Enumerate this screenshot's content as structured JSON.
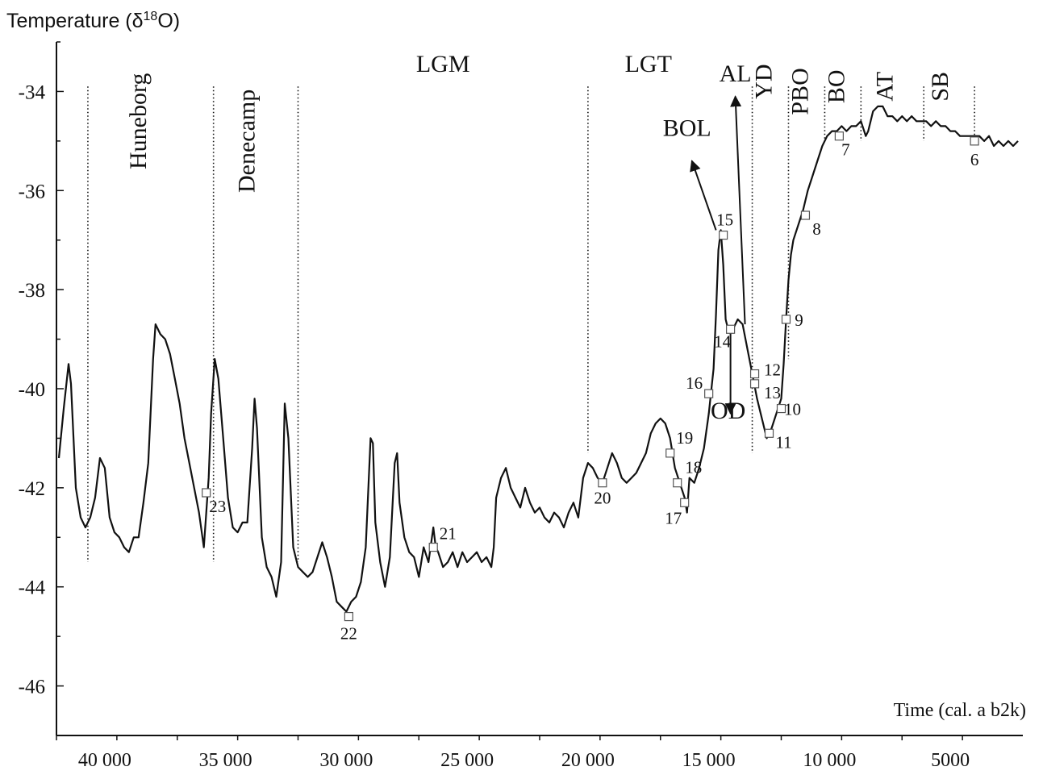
{
  "chart_data": {
    "type": "line",
    "y_title": "Temperature (δ",
    "y_title_sup": "18",
    "y_title_end": "O)",
    "x_title": "Time (cal. a b2k)",
    "xlim": [
      42000,
      2000
    ],
    "ylim": [
      -47,
      -33
    ],
    "x_ticks": [
      40000,
      35000,
      30000,
      25000,
      20000,
      15000,
      10000,
      5000
    ],
    "x_tick_labels": [
      "40 000",
      "35 000",
      "30 000",
      "25 000",
      "20 000",
      "15 000",
      "10 000",
      "5000"
    ],
    "y_ticks": [
      -34,
      -36,
      -38,
      -40,
      -42,
      -44,
      -46
    ],
    "y_tick_labels": [
      "-34",
      "-36",
      "-38",
      "-40",
      "-42",
      "-44",
      "-46"
    ],
    "grid": false,
    "series": [
      {
        "points": [
          [
            41900,
            -41.4
          ],
          [
            41700,
            -40.4
          ],
          [
            41500,
            -39.5
          ],
          [
            41400,
            -39.9
          ],
          [
            41200,
            -42.0
          ],
          [
            41000,
            -42.6
          ],
          [
            40800,
            -42.8
          ],
          [
            40600,
            -42.6
          ],
          [
            40400,
            -42.2
          ],
          [
            40200,
            -41.4
          ],
          [
            40000,
            -41.6
          ],
          [
            39800,
            -42.6
          ],
          [
            39600,
            -42.9
          ],
          [
            39400,
            -43.0
          ],
          [
            39200,
            -43.2
          ],
          [
            39000,
            -43.3
          ],
          [
            38800,
            -43.0
          ],
          [
            38600,
            -43.0
          ],
          [
            38400,
            -42.3
          ],
          [
            38200,
            -41.5
          ],
          [
            38000,
            -39.4
          ],
          [
            37900,
            -38.7
          ],
          [
            37700,
            -38.9
          ],
          [
            37500,
            -39.0
          ],
          [
            37300,
            -39.3
          ],
          [
            37100,
            -39.8
          ],
          [
            36900,
            -40.3
          ],
          [
            36700,
            -41.0
          ],
          [
            36500,
            -41.5
          ],
          [
            36300,
            -42.0
          ],
          [
            36100,
            -42.5
          ],
          [
            35900,
            -43.2
          ],
          [
            35800,
            -42.5
          ],
          [
            35700,
            -41.8
          ],
          [
            35600,
            -40.5
          ],
          [
            35450,
            -39.4
          ],
          [
            35300,
            -39.8
          ],
          [
            35100,
            -41.0
          ],
          [
            34900,
            -42.2
          ],
          [
            34700,
            -42.8
          ],
          [
            34500,
            -42.9
          ],
          [
            34300,
            -42.7
          ],
          [
            34100,
            -42.7
          ],
          [
            33900,
            -41.2
          ],
          [
            33800,
            -40.2
          ],
          [
            33700,
            -40.8
          ],
          [
            33500,
            -43.0
          ],
          [
            33300,
            -43.6
          ],
          [
            33100,
            -43.8
          ],
          [
            32900,
            -44.2
          ],
          [
            32700,
            -43.5
          ],
          [
            32550,
            -40.3
          ],
          [
            32400,
            -41.0
          ],
          [
            32200,
            -43.2
          ],
          [
            32000,
            -43.6
          ],
          [
            31800,
            -43.7
          ],
          [
            31600,
            -43.8
          ],
          [
            31400,
            -43.7
          ],
          [
            31200,
            -43.4
          ],
          [
            31000,
            -43.1
          ],
          [
            30800,
            -43.4
          ],
          [
            30600,
            -43.8
          ],
          [
            30400,
            -44.3
          ],
          [
            30200,
            -44.4
          ],
          [
            30000,
            -44.5
          ],
          [
            29800,
            -44.3
          ],
          [
            29600,
            -44.2
          ],
          [
            29400,
            -43.9
          ],
          [
            29200,
            -43.2
          ],
          [
            29000,
            -41.0
          ],
          [
            28900,
            -41.1
          ],
          [
            28800,
            -42.7
          ],
          [
            28600,
            -43.5
          ],
          [
            28400,
            -44.0
          ],
          [
            28200,
            -43.4
          ],
          [
            28000,
            -41.5
          ],
          [
            27900,
            -41.3
          ],
          [
            27800,
            -42.3
          ],
          [
            27600,
            -43.0
          ],
          [
            27400,
            -43.3
          ],
          [
            27200,
            -43.4
          ],
          [
            27000,
            -43.8
          ],
          [
            26800,
            -43.2
          ],
          [
            26600,
            -43.5
          ],
          [
            26400,
            -42.8
          ],
          [
            26300,
            -43.2
          ],
          [
            26200,
            -43.3
          ],
          [
            26000,
            -43.6
          ],
          [
            25800,
            -43.5
          ],
          [
            25600,
            -43.3
          ],
          [
            25400,
            -43.6
          ],
          [
            25200,
            -43.3
          ],
          [
            25000,
            -43.5
          ],
          [
            24800,
            -43.4
          ],
          [
            24600,
            -43.3
          ],
          [
            24400,
            -43.5
          ],
          [
            24200,
            -43.4
          ],
          [
            24000,
            -43.6
          ],
          [
            23900,
            -43.2
          ],
          [
            23800,
            -42.2
          ],
          [
            23600,
            -41.8
          ],
          [
            23400,
            -41.6
          ],
          [
            23200,
            -42.0
          ],
          [
            23000,
            -42.2
          ],
          [
            22800,
            -42.4
          ],
          [
            22600,
            -42.0
          ],
          [
            22400,
            -42.3
          ],
          [
            22200,
            -42.5
          ],
          [
            22000,
            -42.4
          ],
          [
            21800,
            -42.6
          ],
          [
            21600,
            -42.7
          ],
          [
            21400,
            -42.5
          ],
          [
            21200,
            -42.6
          ],
          [
            21000,
            -42.8
          ],
          [
            20800,
            -42.5
          ],
          [
            20600,
            -42.3
          ],
          [
            20400,
            -42.6
          ],
          [
            20200,
            -41.8
          ],
          [
            20000,
            -41.5
          ],
          [
            19800,
            -41.6
          ],
          [
            19600,
            -41.8
          ],
          [
            19400,
            -41.9
          ],
          [
            19200,
            -41.6
          ],
          [
            19000,
            -41.3
          ],
          [
            18800,
            -41.5
          ],
          [
            18600,
            -41.8
          ],
          [
            18400,
            -41.9
          ],
          [
            18200,
            -41.8
          ],
          [
            18000,
            -41.7
          ],
          [
            17800,
            -41.5
          ],
          [
            17600,
            -41.3
          ],
          [
            17400,
            -40.9
          ],
          [
            17200,
            -40.7
          ],
          [
            17000,
            -40.6
          ],
          [
            16800,
            -40.7
          ],
          [
            16600,
            -41.0
          ],
          [
            16400,
            -41.6
          ],
          [
            16200,
            -41.9
          ],
          [
            16000,
            -42.2
          ],
          [
            15900,
            -42.5
          ],
          [
            15800,
            -41.8
          ],
          [
            15600,
            -41.9
          ],
          [
            15400,
            -41.6
          ],
          [
            15200,
            -41.2
          ],
          [
            15000,
            -40.5
          ],
          [
            14800,
            -39.6
          ],
          [
            14700,
            -38.5
          ],
          [
            14600,
            -37.2
          ],
          [
            14500,
            -36.8
          ],
          [
            14400,
            -37.5
          ],
          [
            14300,
            -38.6
          ],
          [
            14200,
            -38.8
          ],
          [
            14000,
            -38.8
          ],
          [
            13800,
            -38.6
          ],
          [
            13600,
            -38.7
          ],
          [
            13400,
            -39.2
          ],
          [
            13200,
            -39.7
          ],
          [
            13000,
            -40.2
          ],
          [
            12800,
            -40.6
          ],
          [
            12600,
            -41.0
          ],
          [
            12400,
            -40.8
          ],
          [
            12200,
            -40.5
          ],
          [
            12000,
            -40.2
          ],
          [
            11900,
            -39.5
          ],
          [
            11800,
            -38.6
          ],
          [
            11700,
            -37.8
          ],
          [
            11600,
            -37.3
          ],
          [
            11500,
            -37.0
          ],
          [
            11300,
            -36.7
          ],
          [
            11100,
            -36.4
          ],
          [
            10900,
            -36.0
          ],
          [
            10700,
            -35.7
          ],
          [
            10500,
            -35.4
          ],
          [
            10300,
            -35.1
          ],
          [
            10100,
            -34.9
          ],
          [
            9900,
            -34.8
          ],
          [
            9700,
            -34.8
          ],
          [
            9500,
            -34.7
          ],
          [
            9300,
            -34.8
          ],
          [
            9100,
            -34.7
          ],
          [
            8900,
            -34.7
          ],
          [
            8700,
            -34.6
          ],
          [
            8500,
            -34.9
          ],
          [
            8400,
            -34.8
          ],
          [
            8200,
            -34.4
          ],
          [
            8000,
            -34.3
          ],
          [
            7800,
            -34.3
          ],
          [
            7600,
            -34.5
          ],
          [
            7400,
            -34.5
          ],
          [
            7200,
            -34.6
          ],
          [
            7000,
            -34.5
          ],
          [
            6800,
            -34.6
          ],
          [
            6600,
            -34.5
          ],
          [
            6400,
            -34.6
          ],
          [
            6200,
            -34.6
          ],
          [
            6000,
            -34.6
          ],
          [
            5800,
            -34.7
          ],
          [
            5600,
            -34.6
          ],
          [
            5400,
            -34.7
          ],
          [
            5200,
            -34.7
          ],
          [
            5000,
            -34.8
          ],
          [
            4800,
            -34.8
          ],
          [
            4600,
            -34.9
          ],
          [
            4400,
            -34.9
          ],
          [
            4200,
            -34.9
          ],
          [
            4000,
            -34.9
          ],
          [
            3800,
            -34.9
          ],
          [
            3600,
            -35.0
          ],
          [
            3400,
            -34.9
          ],
          [
            3200,
            -35.1
          ],
          [
            3000,
            -35.0
          ],
          [
            2800,
            -35.1
          ],
          [
            2600,
            -35.0
          ],
          [
            2400,
            -35.1
          ],
          [
            2200,
            -35.0
          ]
        ]
      }
    ],
    "period_boundaries": [
      40700,
      35500,
      32000,
      20000,
      13200,
      11700,
      10200,
      8700,
      6100,
      4000
    ],
    "periods": [
      {
        "label": "Huneborg",
        "x": 38300,
        "y": -34.6
      },
      {
        "label": "Denecamp",
        "x": 33800,
        "y": -35.0
      },
      {
        "label": "LGM",
        "x": 26000,
        "y": -33.6
      },
      {
        "label": "LGT",
        "x": 17500,
        "y": -33.6
      },
      {
        "label": "YD",
        "x": 12400,
        "y": -33.8
      },
      {
        "label": "PBO",
        "x": 10900,
        "y": -34.0
      },
      {
        "label": "BO",
        "x": 9400,
        "y": -33.9
      },
      {
        "label": "AT",
        "x": 7400,
        "y": -33.9
      },
      {
        "label": "SB",
        "x": 5100,
        "y": -33.9
      }
    ],
    "annotations": [
      {
        "label": "AL",
        "text_x": 13900,
        "text_y": -33.8,
        "arrow_from": [
          13500,
          -38.7
        ],
        "arrow_to": [
          13900,
          -34.1
        ]
      },
      {
        "label": "BOL",
        "text_x": 15900,
        "text_y": -34.9,
        "arrow_from": [
          14700,
          -36.8
        ],
        "arrow_to": [
          15700,
          -35.4
        ]
      },
      {
        "label": "OD",
        "text_x": 14200,
        "text_y": -40.6,
        "arrow_from": [
          14100,
          -38.8
        ],
        "arrow_to": [
          14100,
          -40.5
        ]
      }
    ],
    "samples": [
      {
        "id": "6",
        "x": 4000,
        "y": -35.0
      },
      {
        "id": "7",
        "x": 9600,
        "y": -34.9
      },
      {
        "id": "8",
        "x": 11000,
        "y": -36.5
      },
      {
        "id": "9",
        "x": 11800,
        "y": -38.6
      },
      {
        "id": "10",
        "x": 12000,
        "y": -40.4
      },
      {
        "id": "11",
        "x": 12500,
        "y": -40.9
      },
      {
        "id": "12",
        "x": 13100,
        "y": -39.7
      },
      {
        "id": "13",
        "x": 13100,
        "y": -39.9
      },
      {
        "id": "14",
        "x": 14100,
        "y": -38.8
      },
      {
        "id": "15",
        "x": 14400,
        "y": -36.9
      },
      {
        "id": "16",
        "x": 15000,
        "y": -40.1
      },
      {
        "id": "17",
        "x": 16000,
        "y": -42.3
      },
      {
        "id": "18",
        "x": 16300,
        "y": -41.9
      },
      {
        "id": "19",
        "x": 16600,
        "y": -41.3
      },
      {
        "id": "20",
        "x": 19400,
        "y": -41.9
      },
      {
        "id": "21",
        "x": 26400,
        "y": -43.2
      },
      {
        "id": "22",
        "x": 29900,
        "y": -44.6
      },
      {
        "id": "23",
        "x": 35800,
        "y": -42.1
      }
    ]
  }
}
